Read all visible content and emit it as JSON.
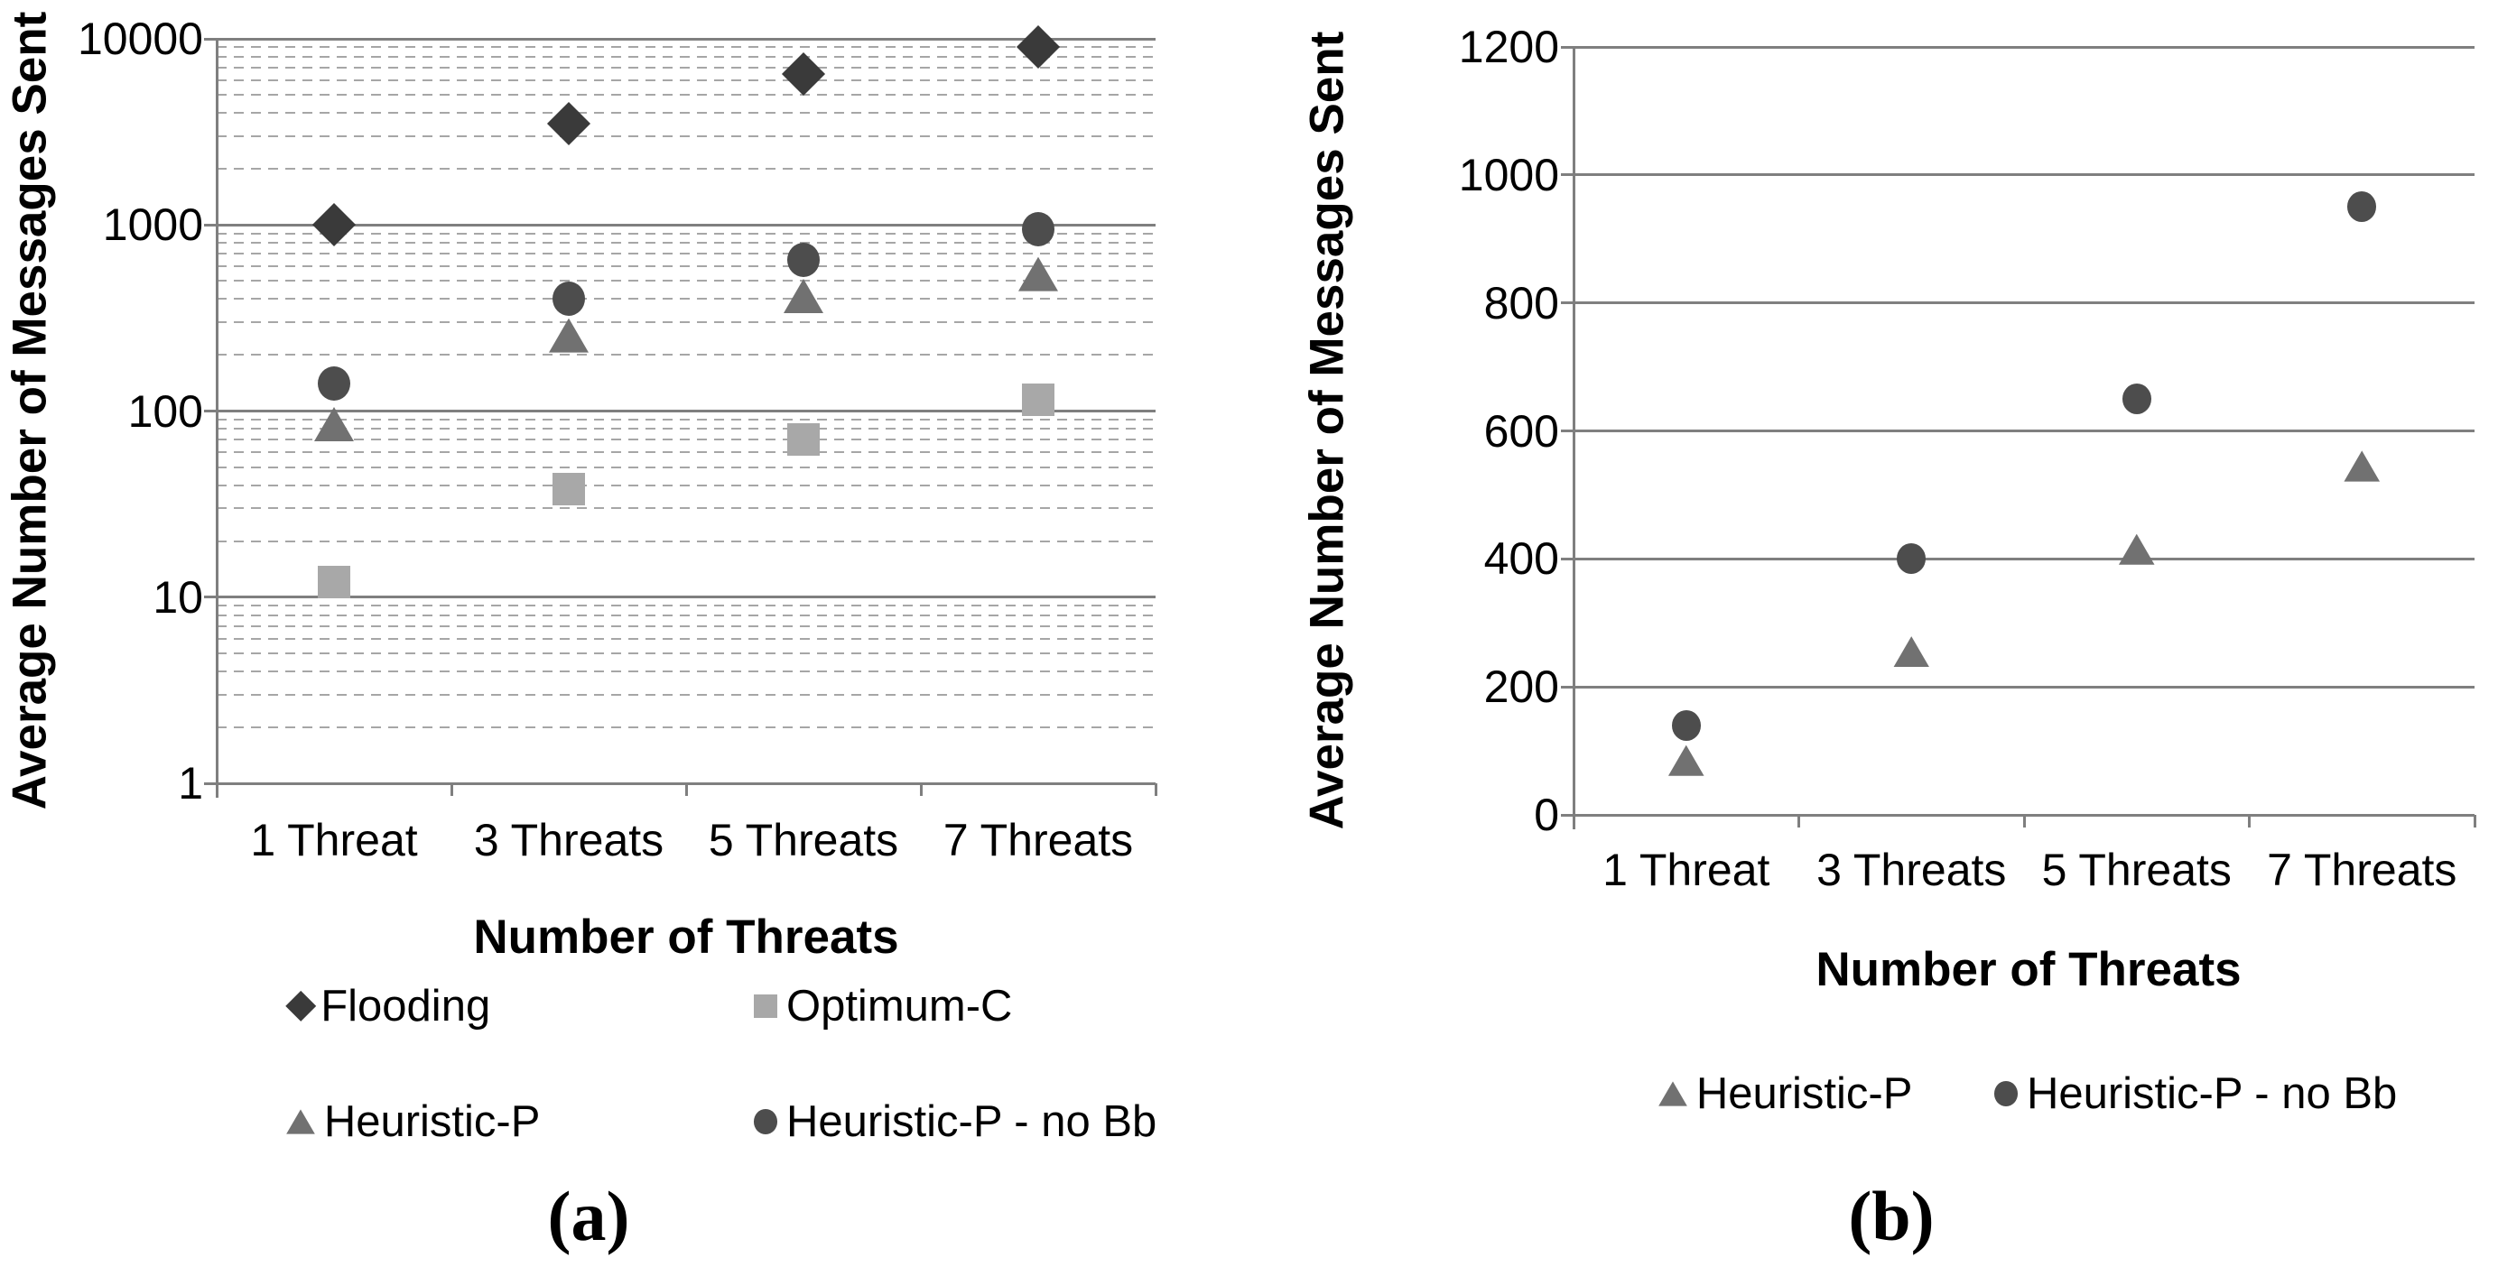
{
  "figure": {
    "captions": [
      {
        "label": "(a)"
      },
      {
        "label": "(b)"
      }
    ],
    "colors": {
      "axis": "#7f7f7f",
      "gridline_major": "#7f7f7f",
      "gridline_minor": "#a6a6a6",
      "text": "#000000",
      "flooding": "#3a3a3a",
      "optimum_c": "#a8a8a8",
      "heuristic_p": "#717171",
      "heuristic_p_no_bb": "#4d4d4d"
    }
  },
  "chart_data": [
    {
      "id": "a",
      "type": "scatter",
      "title": "",
      "xlabel": "Number of Threats",
      "ylabel": "Average Number of Messages Sent",
      "x_categories": [
        "1 Threat",
        "3 Threats",
        "5 Threats",
        "7 Threats"
      ],
      "y_scale": "log",
      "ylim": [
        1,
        10000
      ],
      "y_ticks": [
        10000,
        1000,
        100,
        10,
        1
      ],
      "y_tick_labels": [
        "10000",
        "1000",
        "100",
        "10",
        "1"
      ],
      "minor_gridlines": true,
      "grid": "on",
      "legend_position": "bottom",
      "series": [
        {
          "name": "Flooding",
          "marker": "diamond",
          "color": "#3a3a3a",
          "values": [
            1000,
            3500,
            6500,
            9000
          ]
        },
        {
          "name": "Optimum-C",
          "marker": "square",
          "color": "#a8a8a8",
          "values": [
            12,
            38,
            70,
            115
          ]
        },
        {
          "name": "Heuristic-P",
          "marker": "triangle",
          "color": "#717171",
          "values": [
            85,
            255,
            415,
            545
          ]
        },
        {
          "name": "Heuristic-P - no Bb",
          "marker": "circle",
          "color": "#4d4d4d",
          "values": [
            140,
            400,
            650,
            950
          ]
        }
      ]
    },
    {
      "id": "b",
      "type": "scatter",
      "title": "",
      "xlabel": "Number of Threats",
      "ylabel": "Average Number of Messages Sent",
      "x_categories": [
        "1 Threat",
        "3 Threats",
        "5 Threats",
        "7 Threats"
      ],
      "y_scale": "linear",
      "ylim": [
        0,
        1200
      ],
      "y_ticks": [
        1200,
        1000,
        800,
        600,
        400,
        200,
        0
      ],
      "y_tick_labels": [
        "1200",
        "1000",
        "800",
        "600",
        "400",
        "200",
        "0"
      ],
      "minor_gridlines": false,
      "grid": "on",
      "legend_position": "bottom",
      "series": [
        {
          "name": "Heuristic-P",
          "marker": "triangle",
          "color": "#717171",
          "values": [
            85,
            255,
            415,
            545
          ]
        },
        {
          "name": "Heuristic-P - no Bb",
          "marker": "circle",
          "color": "#4d4d4d",
          "values": [
            140,
            400,
            650,
            950
          ]
        }
      ]
    }
  ]
}
